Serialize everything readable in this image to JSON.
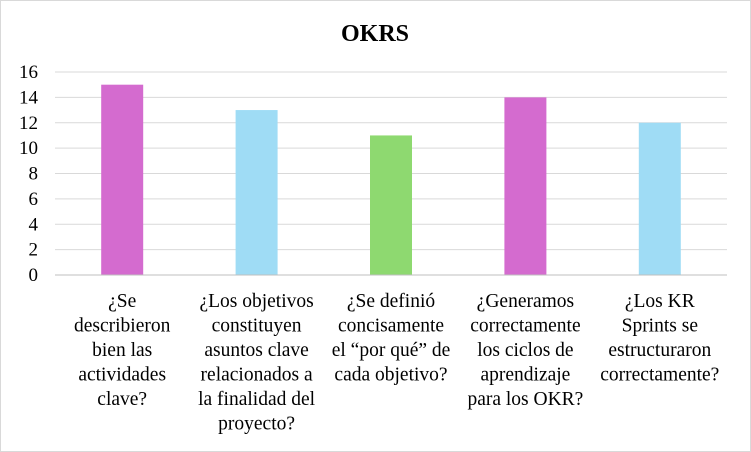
{
  "chart_data": {
    "type": "bar",
    "title": "OKRS",
    "xlabel": "",
    "ylabel": "",
    "ylim": [
      0,
      16
    ],
    "yticks": [
      0,
      2,
      4,
      6,
      8,
      10,
      12,
      14,
      16
    ],
    "grid": true,
    "legend": "none",
    "categories": [
      [
        "¿Se",
        "describieron",
        "bien las",
        "actividades",
        "clave?"
      ],
      [
        "¿Los objetivos",
        "constituyen",
        "asuntos clave",
        "relacionados a",
        "la finalidad del",
        "proyecto?"
      ],
      [
        "¿Se definió",
        "concisamente",
        "el “por qué” de",
        "cada objetivo?"
      ],
      [
        "¿Generamos",
        "correctamente",
        "los ciclos de",
        "aprendizaje",
        "para los OKR?"
      ],
      [
        "¿Los KR",
        "Sprints se",
        "estructuraron",
        "correctamente?"
      ]
    ],
    "values": [
      15,
      13,
      11,
      14,
      12
    ],
    "colors": [
      "#d46bcf",
      "#9fdcf5",
      "#8ed970",
      "#d46bcf",
      "#9fdcf5"
    ]
  }
}
